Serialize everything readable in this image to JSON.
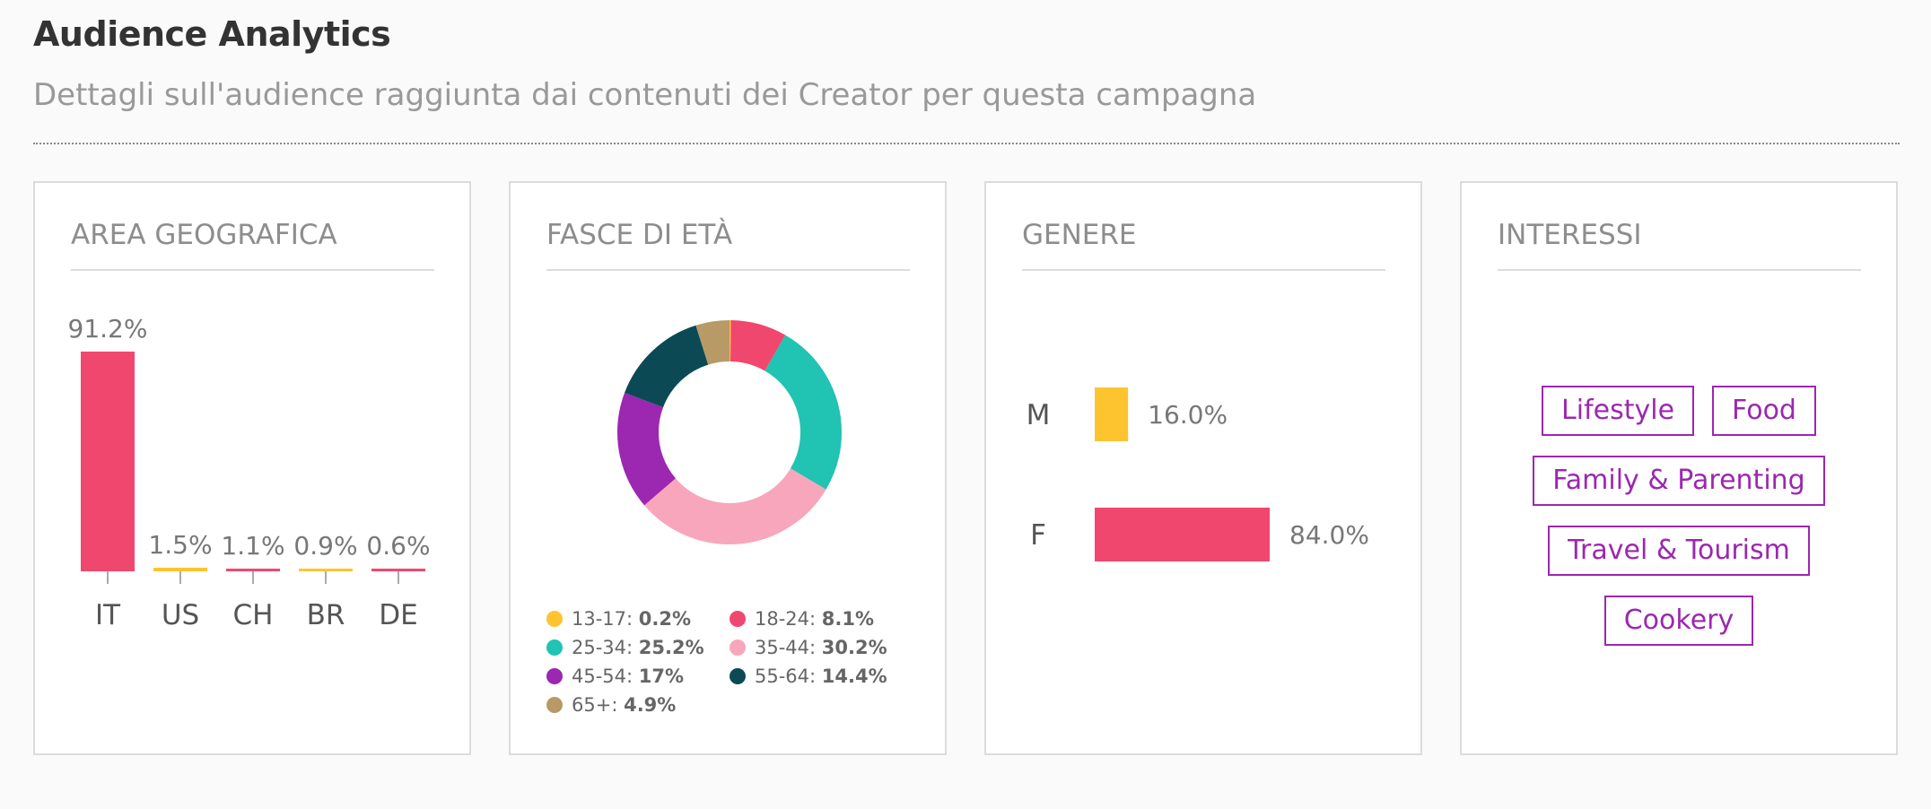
{
  "header": {
    "title": "Audience Analytics",
    "subtitle": "Dettagli sull'audience raggiunta dai contenuti dei Creator per questa campagna"
  },
  "cards": {
    "geo": {
      "title": "AREA GEOGRAFICA"
    },
    "age": {
      "title": "FASCE DI ETÀ"
    },
    "gender": {
      "title": "GENERE"
    },
    "interests": {
      "title": "INTERESSI"
    }
  },
  "colors": {
    "pink": "#f0476f",
    "yellow": "#fec430",
    "teal": "#21c3b3",
    "lightpink": "#f8a6bb",
    "purple": "#9c27b0",
    "darkteal": "#0b4a55",
    "tan": "#b89a66"
  },
  "chart_data": [
    {
      "id": "geo",
      "type": "bar",
      "title": "AREA GEOGRAFICA",
      "categories": [
        "IT",
        "US",
        "CH",
        "BR",
        "DE"
      ],
      "values": [
        91.2,
        1.5,
        1.1,
        0.9,
        0.6
      ],
      "labels": [
        "91.2%",
        "1.5%",
        "1.1%",
        "0.9%",
        "0.6%"
      ],
      "colors": [
        "#f0476f",
        "#fec430",
        "#f0476f",
        "#fec430",
        "#f0476f"
      ],
      "ylim": [
        0,
        91.2
      ],
      "grid": false
    },
    {
      "id": "age",
      "type": "pie",
      "title": "FASCE DI ETÀ",
      "categories": [
        "13-17",
        "18-24",
        "25-34",
        "35-44",
        "45-54",
        "55-64",
        "65+"
      ],
      "values": [
        0.2,
        8.1,
        25.2,
        30.2,
        17,
        14.4,
        4.9
      ],
      "labels": [
        "0.2%",
        "8.1%",
        "25.2%",
        "30.2%",
        "17%",
        "14.4%",
        "4.9%"
      ],
      "colors": [
        "#fec430",
        "#f0476f",
        "#21c3b3",
        "#f8a6bb",
        "#9c27b0",
        "#0b4a55",
        "#b89a66"
      ],
      "legend": "bottom"
    },
    {
      "id": "gender",
      "type": "bar",
      "title": "GENERE",
      "orientation": "horizontal",
      "categories": [
        "M",
        "F"
      ],
      "values": [
        16.0,
        84.0
      ],
      "labels": [
        "16.0%",
        "84.0%"
      ],
      "colors": [
        "#fec430",
        "#f0476f"
      ],
      "xlim": [
        0,
        84.0
      ]
    }
  ],
  "interests": [
    "Lifestyle",
    "Food",
    "Family & Parenting",
    "Travel & Tourism",
    "Cookery"
  ]
}
